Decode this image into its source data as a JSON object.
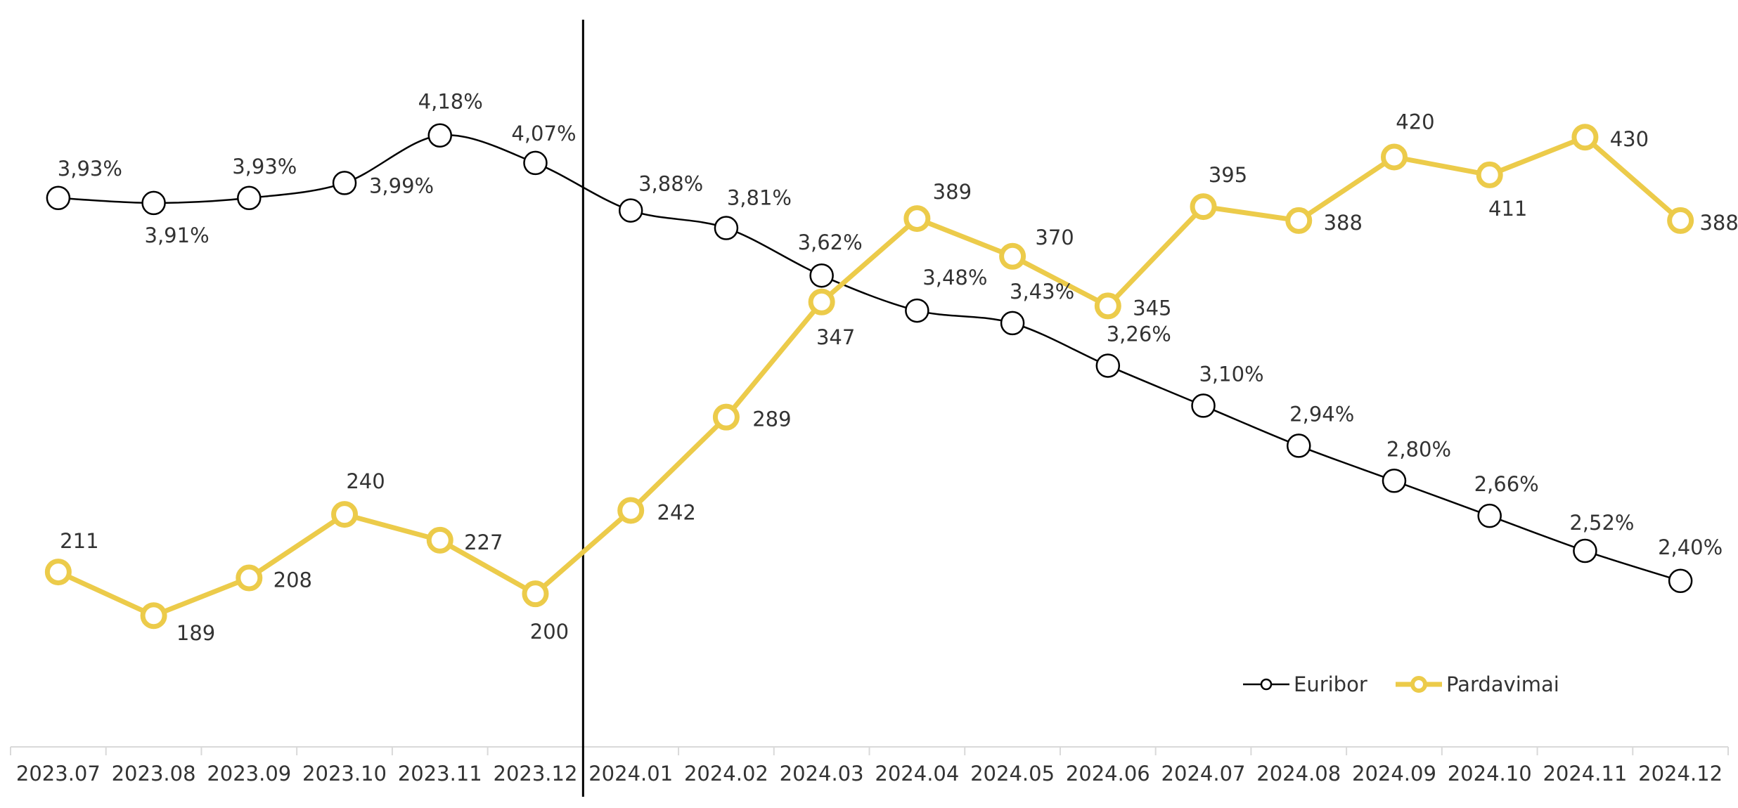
{
  "chart_data": {
    "type": "line",
    "categories": [
      "2023.07",
      "2023.08",
      "2023.09",
      "2023.10",
      "2023.11",
      "2023.12",
      "2024.01",
      "2024.02",
      "2024.03",
      "2024.04",
      "2024.05",
      "2024.06",
      "2024.07",
      "2024.08",
      "2024.09",
      "2024.10",
      "2024.11",
      "2024.12"
    ],
    "series": [
      {
        "name": "Euribor",
        "values": [
          3.93,
          3.91,
          3.93,
          3.99,
          4.18,
          4.07,
          3.88,
          3.81,
          3.62,
          3.48,
          3.43,
          3.26,
          3.1,
          2.94,
          2.8,
          2.66,
          2.52,
          2.4
        ],
        "labels": [
          "3,93%",
          "3,91%",
          "3,93%",
          "3,99%",
          "4,18%",
          "4,07%",
          "3,88%",
          "3,81%",
          "3,62%",
          "3,48%",
          "3,43%",
          "3,26%",
          "3,10%",
          "2,94%",
          "2,80%",
          "2,66%",
          "2,52%",
          "2,40%"
        ],
        "color": "#000000",
        "axis": "left",
        "ylim": [
          2.2,
          4.3
        ],
        "smooth": true
      },
      {
        "name": "Pardavimai",
        "values": [
          211,
          189,
          208,
          240,
          227,
          200,
          242,
          289,
          347,
          389,
          370,
          345,
          395,
          388,
          420,
          411,
          430,
          388
        ],
        "labels": [
          "211",
          "189",
          "208",
          "240",
          "227",
          "200",
          "242",
          "289",
          "347",
          "389",
          "370",
          "345",
          "395",
          "388",
          "420",
          "411",
          "430",
          "388"
        ],
        "color": "#ECCB4A",
        "axis": "right",
        "ylim": [
          136,
          446
        ]
      }
    ],
    "vertical_marker_between": [
      "2023.12",
      "2024.01"
    ],
    "legend": {
      "position": "bottom-right",
      "items": [
        "Euribor",
        "Pardavimai"
      ]
    },
    "grid": false,
    "title": "",
    "xlabel": "",
    "ylabel": ""
  }
}
